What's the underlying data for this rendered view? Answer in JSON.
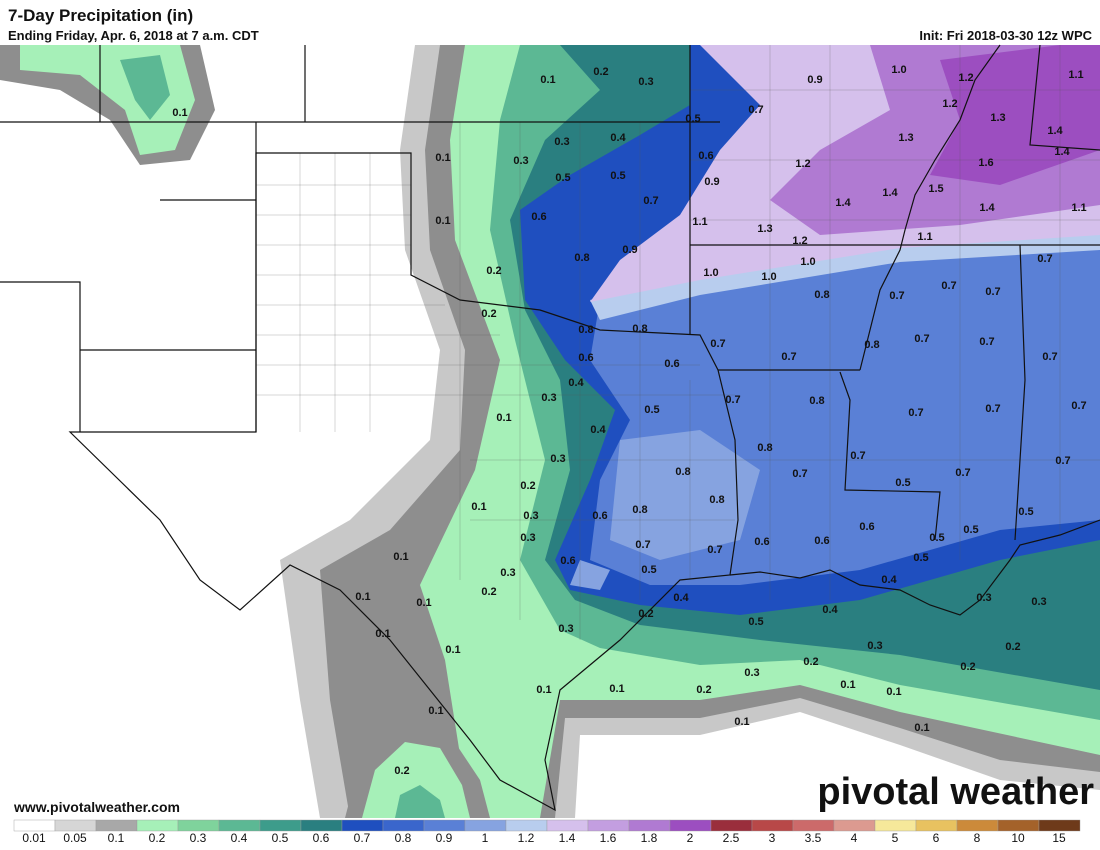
{
  "header": {
    "title": "7-Day Precipitation (in)",
    "subtitle": "Ending Friday, Apr. 6, 2018 at 7 a.m. CDT",
    "init": "Init: Fri 2018-03-30 12z WPC"
  },
  "watermark": "www.pivotalweather.com",
  "logo": "pivotal weather",
  "map": {
    "labels": [
      "0.1",
      "0.2",
      "0.3",
      "0.9",
      "1.0",
      "1.2",
      "1.1",
      "0.1",
      "0.5",
      "0.7",
      "1.2",
      "1.3",
      "1.4",
      "0.3",
      "0.4",
      "0.1",
      "0.3",
      "0.6",
      "1.3",
      "1.6",
      "1.4",
      "0.5",
      "0.5",
      "0.9",
      "1.2",
      "1.4",
      "1.5",
      "0.7",
      "1.4",
      "1.4",
      "1.1",
      "0.1",
      "0.6",
      "1.1",
      "1.3",
      "1.2",
      "1.1",
      "0.9",
      "0.8",
      "0.2",
      "1.0",
      "1.0",
      "1.0",
      "0.7",
      "0.8",
      "0.7",
      "0.7",
      "0.7",
      "0.2",
      "0.8",
      "0.8",
      "0.7",
      "0.7",
      "0.8",
      "0.7",
      "0.7",
      "0.7",
      "0.6",
      "0.6",
      "0.4",
      "0.3",
      "0.5",
      "0.7",
      "0.8",
      "0.7",
      "0.7",
      "0.7",
      "0.1",
      "0.4",
      "0.8",
      "0.3",
      "0.7",
      "0.7",
      "0.8",
      "0.7",
      "0.7",
      "0.2",
      "0.5",
      "0.1",
      "0.8",
      "0.3",
      "0.6",
      "0.8",
      "0.6",
      "0.5",
      "0.3",
      "0.7",
      "0.7",
      "0.6",
      "0.6",
      "0.5",
      "0.5",
      "0.1",
      "0.6",
      "0.5",
      "0.5",
      "0.3",
      "0.2",
      "0.1",
      "0.1",
      "0.4",
      "0.4",
      "0.4",
      "0.3",
      "0.3",
      "0.2",
      "0.5",
      "0.1",
      "0.3",
      "0.3",
      "0.2",
      "0.1",
      "0.2",
      "0.2",
      "0.3",
      "0.1",
      "0.1",
      "0.2",
      "0.1",
      "0.1",
      "0.1",
      "0.1",
      "0.1",
      "0.2"
    ]
  },
  "colorbar": [
    {
      "label": "0.01",
      "color": "#ffffff"
    },
    {
      "label": "0.05",
      "color": "#d6d6d6"
    },
    {
      "label": "0.1",
      "color": "#a8a8a8"
    },
    {
      "label": "0.2",
      "color": "#a6f0b8"
    },
    {
      "label": "0.3",
      "color": "#7fd39c"
    },
    {
      "label": "0.4",
      "color": "#5cb894"
    },
    {
      "label": "0.5",
      "color": "#3d9c8b"
    },
    {
      "label": "0.6",
      "color": "#2a7f80"
    },
    {
      "label": "0.7",
      "color": "#1f4fbf"
    },
    {
      "label": "0.8",
      "color": "#3a66cc"
    },
    {
      "label": "0.9",
      "color": "#5a80d6"
    },
    {
      "label": "1",
      "color": "#86a3e0"
    },
    {
      "label": "1.2",
      "color": "#b8cdee"
    },
    {
      "label": "1.4",
      "color": "#d5c0ec"
    },
    {
      "label": "1.6",
      "color": "#c39ee0"
    },
    {
      "label": "1.8",
      "color": "#b07ad2"
    },
    {
      "label": "2",
      "color": "#9c4ec0"
    },
    {
      "label": "2.5",
      "color": "#9a2e3c"
    },
    {
      "label": "3",
      "color": "#b84848"
    },
    {
      "label": "3.5",
      "color": "#cc6a6a"
    },
    {
      "label": "4",
      "color": "#dc9a90"
    },
    {
      "label": "5",
      "color": "#f6e89a"
    },
    {
      "label": "6",
      "color": "#e8c260"
    },
    {
      "label": "8",
      "color": "#cc8a3a"
    },
    {
      "label": "10",
      "color": "#a4622a"
    },
    {
      "label": "15",
      "color": "#6e3a1a"
    }
  ]
}
